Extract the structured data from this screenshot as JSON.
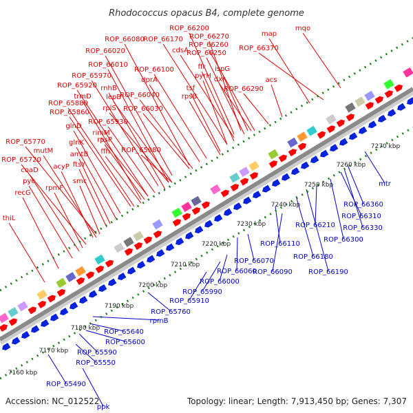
{
  "title": "Rhodococcus opacus B4, complete genome",
  "footer": {
    "accession": "Accession: NC_012522",
    "summary": "Topology: linear; Length: 7,913,450 bp; Genes: 7,307"
  },
  "colors": {
    "top_labels": "#dd0000",
    "bottom_labels": "#0000cc",
    "forward_strand": "#ff0000",
    "reverse_strand": "#0022dd",
    "axis": "#8a8a8a",
    "tick": "#1a7a1a"
  },
  "top_labels": [
    "ROP_66200",
    "ROP_66270",
    "map",
    "mqo",
    "ROP_66080",
    "ROP_66170",
    "ROP_66260",
    "cdsA",
    "ROP_66250",
    "ROP_66020",
    "ROP_66370",
    "ROP_66010",
    "ffr",
    "ispG",
    "ROP_65970",
    "ROP_66100",
    "pyrH",
    "dxr",
    "dprA",
    "acs",
    "rnhB",
    "ROP_66040",
    "tsf",
    "ROP_66290",
    "ROP_65920",
    "lepB",
    "rpsB",
    "trmD",
    "rplS",
    "ROP_66030",
    "ROP_65880",
    "ROP_65860",
    "ROP_65930",
    "glnD",
    "rimM",
    "glnK",
    "rpsP",
    "ROP_65980",
    "ROP_65770",
    "amtB",
    "ffh",
    "mutM",
    "ftsY",
    "ROP_65720",
    "acyP",
    "coaD",
    "smc",
    "pyc",
    "rpmF",
    "recG",
    "thiL"
  ],
  "bottom_labels": [
    "ROP_65490",
    "ppk",
    "ROP_65550",
    "ROP_65590",
    "ROP_65600",
    "ROP_65640",
    "rpmB",
    "ROP_65760",
    "ROP_65910",
    "ROP_65990",
    "ROP_66000",
    "ROP_66060",
    "ROP_66070",
    "ROP_66090",
    "ROP_66110",
    "ROP_66180",
    "ROP_66190",
    "ROP_66210",
    "ROP_66300",
    "ROP_66310",
    "ROP_66330",
    "ROP_66360",
    "mtr"
  ],
  "kbp_ticks": [
    "7160 kbp",
    "7170 kbp",
    "7180 kbp",
    "7190 kbp",
    "7200 kbp",
    "7210 kbp",
    "7220 kbp",
    "7230 kbp",
    "7240 kbp",
    "7250 kbp",
    "7260 kbp",
    "7270 kbp"
  ]
}
